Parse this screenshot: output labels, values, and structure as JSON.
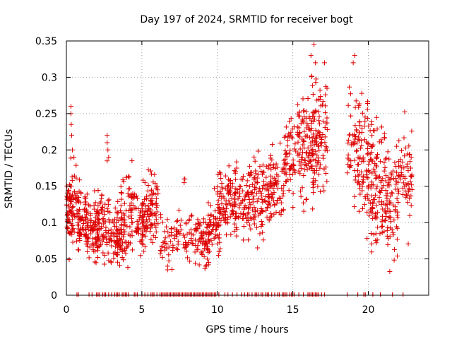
{
  "chart_data": {
    "type": "scatter",
    "title": "Day 197 of 2024, SRMTID for receiver bogt",
    "xlabel": "GPS time / hours",
    "ylabel": "SRMTID / TECUs",
    "xlim": [
      0,
      24
    ],
    "ylim": [
      0,
      0.35
    ],
    "xticks": [
      0,
      5,
      10,
      15,
      20
    ],
    "xtick_labels": [
      "0",
      "5",
      "10",
      "15",
      "20"
    ],
    "yticks": [
      0,
      0.05,
      0.1,
      0.15,
      0.2,
      0.25,
      0.3,
      0.35
    ],
    "ytick_labels": [
      "0",
      "0.05",
      "0.1",
      "0.15",
      "0.2",
      "0.25",
      "0.3",
      "0.35"
    ],
    "grid": true,
    "series": [
      {
        "name": "SRMTID",
        "marker": "+",
        "color": "#dd0000",
        "clusters": [
          {
            "x": [
              0.0,
              0.4
            ],
            "y_mean": 0.12,
            "y_spread": 0.03,
            "n": 60,
            "outliers": [
              [
                0.3,
                0.26
              ],
              [
                0.3,
                0.25
              ],
              [
                0.32,
                0.235
              ],
              [
                0.35,
                0.22
              ],
              [
                0.4,
                0.2
              ],
              [
                0.5,
                0.19
              ]
            ]
          },
          {
            "x": [
              0.4,
              1.0
            ],
            "y_mean": 0.12,
            "y_spread": 0.03,
            "n": 40
          },
          {
            "x": [
              0.7,
              1.4
            ],
            "y_mean": 0.1,
            "y_spread": 0.025,
            "n": 60
          },
          {
            "x": [
              1.3,
              2.2
            ],
            "y_mean": 0.09,
            "y_spread": 0.025,
            "n": 80
          },
          {
            "x": [
              2.0,
              2.9
            ],
            "y_mean": 0.1,
            "y_spread": 0.03,
            "n": 70,
            "outliers": [
              [
                2.7,
                0.22
              ],
              [
                2.7,
                0.21
              ],
              [
                2.75,
                0.2
              ],
              [
                2.8,
                0.19
              ],
              [
                2.7,
                0.185
              ]
            ]
          },
          {
            "x": [
              2.9,
              3.5
            ],
            "y_mean": 0.08,
            "y_spread": 0.025,
            "n": 40
          },
          {
            "x": [
              3.3,
              4.4
            ],
            "y_mean": 0.09,
            "y_spread": 0.025,
            "n": 80
          },
          {
            "x": [
              3.6,
              4.6
            ],
            "y_mean": 0.14,
            "y_spread": 0.02,
            "n": 30
          },
          {
            "x": [
              4.6,
              5.3
            ],
            "y_mean": 0.1,
            "y_spread": 0.025,
            "n": 50
          },
          {
            "x": [
              5.0,
              6.1
            ],
            "y_mean": 0.12,
            "y_spread": 0.03,
            "n": 90
          },
          {
            "x": [
              6.2,
              6.8
            ],
            "y_mean": 0.08,
            "y_spread": 0.02,
            "n": 25,
            "outliers": [
              [
                6.7,
                0.04
              ],
              [
                6.7,
                0.035
              ]
            ]
          },
          {
            "x": [
              6.9,
              7.6
            ],
            "y_mean": 0.08,
            "y_spread": 0.02,
            "n": 30
          },
          {
            "x": [
              7.7,
              8.4
            ],
            "y_mean": 0.08,
            "y_spread": 0.02,
            "n": 30,
            "outliers": [
              [
                7.8,
                0.16
              ],
              [
                7.8,
                0.155
              ],
              [
                7.85,
                0.16
              ]
            ]
          },
          {
            "x": [
              8.5,
              9.5
            ],
            "y_mean": 0.075,
            "y_spread": 0.02,
            "n": 70
          },
          {
            "x": [
              9.4,
              10.2
            ],
            "y_mean": 0.09,
            "y_spread": 0.025,
            "n": 60
          },
          {
            "x": [
              10.0,
              11.2
            ],
            "y_mean": 0.13,
            "y_spread": 0.025,
            "n": 90
          },
          {
            "x": [
              11.1,
              12.5
            ],
            "y_mean": 0.13,
            "y_spread": 0.03,
            "n": 100
          },
          {
            "x": [
              12.4,
              13.6
            ],
            "y_mean": 0.14,
            "y_spread": 0.035,
            "n": 90
          },
          {
            "x": [
              13.5,
              14.4
            ],
            "y_mean": 0.15,
            "y_spread": 0.03,
            "n": 60
          },
          {
            "x": [
              14.4,
              15.2
            ],
            "y_mean": 0.19,
            "y_spread": 0.035,
            "n": 60
          },
          {
            "x": [
              15.3,
              16.4
            ],
            "y_mean": 0.2,
            "y_spread": 0.04,
            "n": 100
          },
          {
            "x": [
              16.2,
              17.3
            ],
            "y_mean": 0.22,
            "y_spread": 0.05,
            "n": 110,
            "outliers": [
              [
                16.4,
                0.345
              ],
              [
                16.2,
                0.33
              ],
              [
                16.5,
                0.32
              ],
              [
                17.1,
                0.32
              ]
            ]
          },
          {
            "x": [
              18.6,
              19.4
            ],
            "y_mean": 0.21,
            "y_spread": 0.04,
            "n": 50,
            "outliers": [
              [
                19.1,
                0.33
              ],
              [
                19.0,
                0.32
              ]
            ]
          },
          {
            "x": [
              19.3,
              20.3
            ],
            "y_mean": 0.18,
            "y_spread": 0.05,
            "n": 90
          },
          {
            "x": [
              20.2,
              21.2
            ],
            "y_mean": 0.16,
            "y_spread": 0.05,
            "n": 90
          },
          {
            "x": [
              21.1,
              22.0
            ],
            "y_mean": 0.13,
            "y_spread": 0.04,
            "n": 80
          },
          {
            "x": [
              22.0,
              22.9
            ],
            "y_mean": 0.16,
            "y_spread": 0.04,
            "n": 60
          }
        ],
        "zero_ticks_x": [
          0.7,
          0.8,
          1.5,
          1.7,
          2.0,
          2.1,
          2.2,
          2.4,
          2.5,
          2.6,
          2.8,
          3.0,
          3.2,
          3.3,
          3.4,
          3.5,
          3.7,
          3.8,
          3.9,
          4.0,
          4.1,
          4.5,
          4.6,
          4.7,
          5.0,
          5.2,
          5.4,
          5.6,
          5.7,
          5.8,
          6.0,
          6.2,
          6.3,
          6.4,
          6.5,
          6.6,
          6.7,
          6.8,
          6.9,
          7.0,
          7.1,
          7.2,
          7.3,
          7.4,
          7.5,
          7.6,
          7.7,
          7.8,
          7.9,
          8.0,
          8.1,
          8.2,
          8.3,
          8.4,
          8.5,
          8.6,
          8.7,
          8.8,
          8.9,
          9.0,
          9.1,
          9.2,
          9.3,
          9.4,
          9.5,
          9.6,
          9.7,
          9.8,
          9.9,
          10.1,
          10.5,
          10.7,
          11.0,
          11.3,
          11.6,
          11.8,
          12.0,
          12.1,
          12.3,
          12.5,
          12.6,
          12.7,
          12.9,
          13.0,
          13.2,
          13.3,
          13.4,
          13.6,
          13.8,
          14.0,
          14.1,
          14.3,
          14.4,
          14.5,
          14.6,
          14.8,
          14.9,
          15.0,
          15.1,
          15.4,
          15.7,
          16.0,
          16.1,
          16.2,
          16.3,
          16.4,
          16.5,
          16.6,
          16.7,
          16.9,
          17.1,
          18.6,
          19.3,
          19.7,
          19.8,
          20.3,
          20.8,
          21.6,
          22.3
        ]
      }
    ]
  }
}
